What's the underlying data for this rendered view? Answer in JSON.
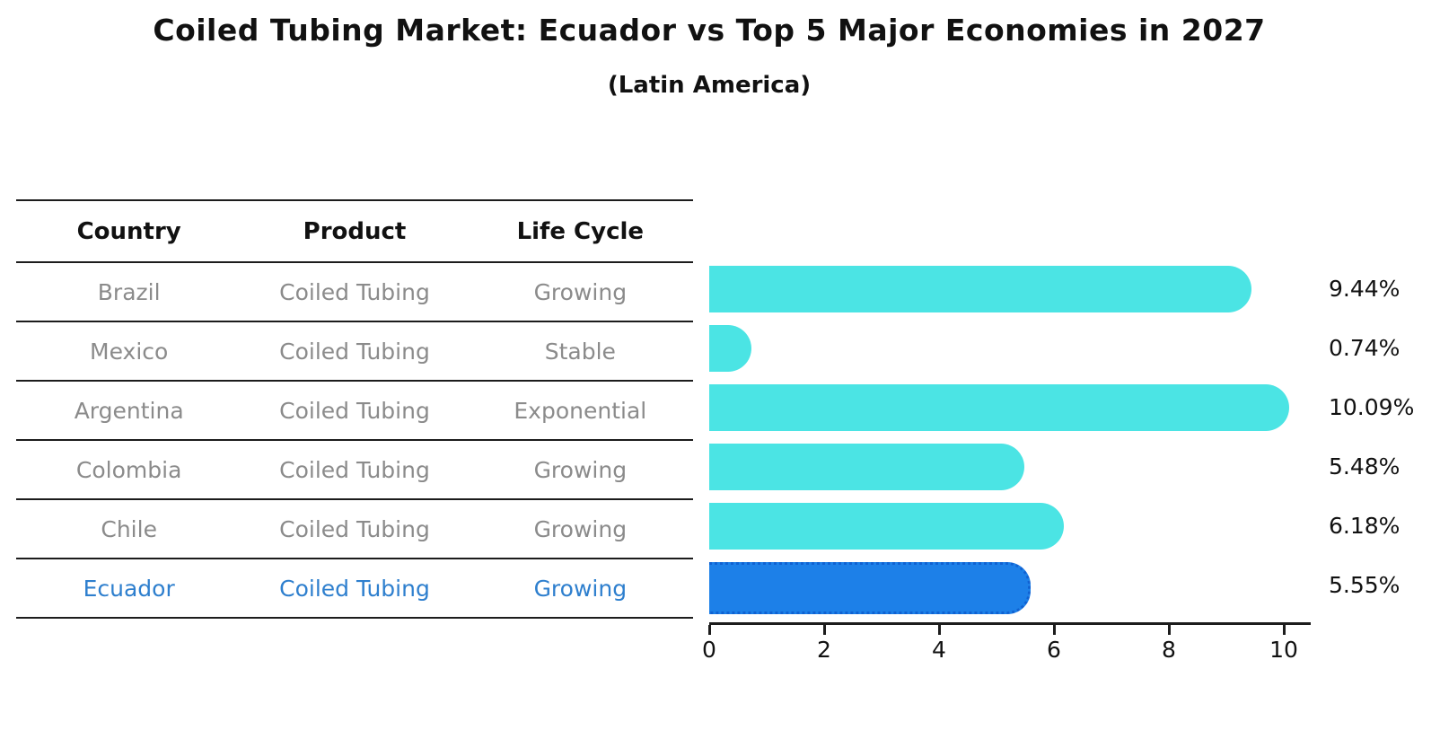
{
  "title": "Coiled Tubing Market: Ecuador vs Top 5 Major Economies in 2027",
  "subtitle": "(Latin America)",
  "colors": {
    "bar": "#4be4e4",
    "highlight_bar": "#1d80e8",
    "highlight_border": "#1062d2",
    "highlight_text": "#2e7fce",
    "row_text": "#8b8b8b",
    "text": "#111111"
  },
  "table": {
    "columns": [
      "Country",
      "Product",
      "Life Cycle"
    ],
    "rows": [
      {
        "country": "Brazil",
        "product": "Coiled Tubing",
        "life_cycle": "Growing",
        "highlight": false
      },
      {
        "country": "Mexico",
        "product": "Coiled Tubing",
        "life_cycle": "Stable",
        "highlight": false
      },
      {
        "country": "Argentina",
        "product": "Coiled Tubing",
        "life_cycle": "Exponential",
        "highlight": false
      },
      {
        "country": "Colombia",
        "product": "Coiled Tubing",
        "life_cycle": "Growing",
        "highlight": false
      },
      {
        "country": "Chile",
        "product": "Coiled Tubing",
        "life_cycle": "Growing",
        "highlight": false
      },
      {
        "country": "Ecuador",
        "product": "Coiled Tubing",
        "life_cycle": "Growing",
        "highlight": true
      }
    ]
  },
  "chart_data": {
    "type": "bar",
    "orientation": "horizontal",
    "title": "Coiled Tubing Market: Ecuador vs Top 5 Major Economies in 2027",
    "subtitle": "(Latin America)",
    "categories": [
      "Brazil",
      "Mexico",
      "Argentina",
      "Colombia",
      "Chile",
      "Ecuador"
    ],
    "values": [
      9.44,
      0.74,
      10.09,
      5.48,
      6.18,
      5.55
    ],
    "value_labels": [
      "9.44%",
      "0.74%",
      "10.09%",
      "5.48%",
      "6.18%",
      "5.55%"
    ],
    "highlight_index": 5,
    "xlabel": "",
    "ylabel": "",
    "xlim": [
      0,
      10.47
    ],
    "xticks": [
      0,
      2,
      4,
      6,
      8,
      10
    ],
    "grid": false,
    "legend": false
  }
}
